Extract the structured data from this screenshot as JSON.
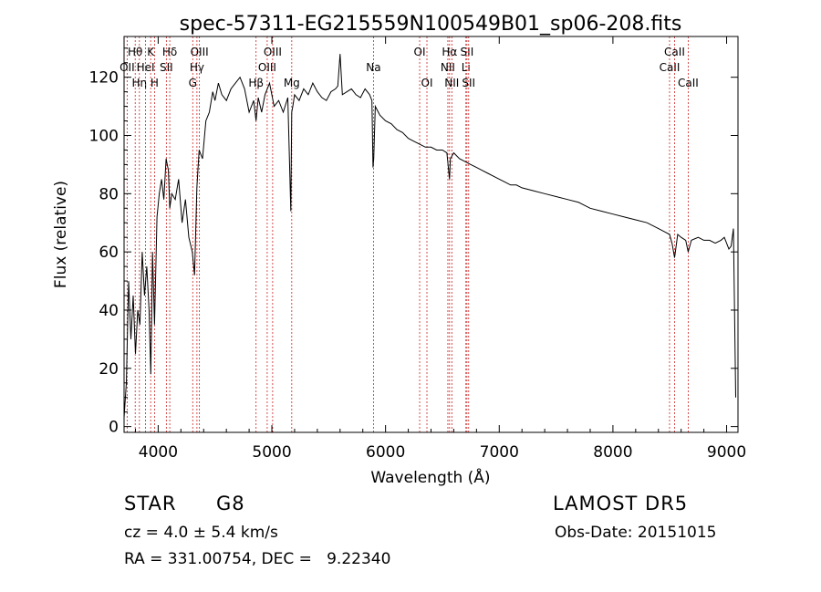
{
  "chart_data": {
    "type": "line",
    "title": "spec-57311-EG215559N100549B01_sp06-208.fits",
    "xlabel": "Wavelength (Å)",
    "ylabel": "Flux (relative)",
    "xlim": [
      3700,
      9100
    ],
    "ylim": [
      -2,
      134
    ],
    "xticks": [
      4000,
      5000,
      6000,
      7000,
      8000,
      9000
    ],
    "yticks": [
      0,
      20,
      40,
      60,
      80,
      100,
      120
    ],
    "grid": false,
    "series": [
      {
        "x": [
          3700,
          3720,
          3740,
          3760,
          3780,
          3800,
          3820,
          3840,
          3860,
          3880,
          3900,
          3920,
          3935,
          3950,
          3968,
          3990,
          4010,
          4030,
          4050,
          4070,
          4090,
          4102,
          4120,
          4150,
          4180,
          4210,
          4240,
          4270,
          4300,
          4320,
          4340,
          4360,
          4390,
          4420,
          4450,
          4480,
          4500,
          4530,
          4560,
          4600,
          4640,
          4680,
          4720,
          4760,
          4800,
          4840,
          4861,
          4880,
          4910,
          4940,
          4980,
          5020,
          5060,
          5100,
          5140,
          5167,
          5175,
          5184,
          5200,
          5240,
          5280,
          5320,
          5360,
          5400,
          5440,
          5480,
          5520,
          5560,
          5580,
          5600,
          5620,
          5660,
          5700,
          5740,
          5780,
          5820,
          5860,
          5880,
          5890,
          5896,
          5910,
          5950,
          6000,
          6050,
          6100,
          6150,
          6200,
          6250,
          6300,
          6350,
          6400,
          6450,
          6500,
          6540,
          6555,
          6563,
          6570,
          6600,
          6650,
          6700,
          6750,
          6800,
          6850,
          6900,
          6950,
          7000,
          7050,
          7100,
          7150,
          7200,
          7300,
          7400,
          7500,
          7600,
          7700,
          7800,
          7900,
          8000,
          8100,
          8200,
          8300,
          8400,
          8450,
          8498,
          8520,
          8542,
          8570,
          8600,
          8640,
          8662,
          8690,
          8750,
          8800,
          8850,
          8900,
          8950,
          8980,
          9000,
          9020,
          9040,
          9060,
          9080
        ],
        "y": [
          3,
          15,
          50,
          30,
          45,
          25,
          40,
          35,
          60,
          45,
          55,
          40,
          18,
          60,
          35,
          72,
          80,
          85,
          78,
          92,
          88,
          75,
          80,
          78,
          85,
          70,
          78,
          65,
          60,
          52,
          82,
          95,
          92,
          105,
          108,
          115,
          112,
          118,
          114,
          112,
          116,
          118,
          120,
          116,
          108,
          112,
          105,
          113,
          108,
          114,
          118,
          110,
          112,
          108,
          113,
          74,
          108,
          110,
          114,
          112,
          116,
          114,
          118,
          115,
          113,
          112,
          115,
          116,
          117,
          128,
          114,
          115,
          116,
          114,
          113,
          116,
          114,
          112,
          89,
          92,
          110,
          107,
          105,
          104,
          102,
          101,
          99,
          98,
          97,
          96,
          96,
          95,
          95,
          94,
          88,
          85,
          92,
          94,
          92,
          91,
          90,
          89,
          88,
          87,
          86,
          85,
          84,
          83,
          83,
          82,
          81,
          80,
          79,
          78,
          77,
          75,
          74,
          73,
          72,
          71,
          70,
          68,
          67,
          66,
          63,
          58,
          66,
          65,
          64,
          60,
          64,
          65,
          64,
          64,
          63,
          64,
          65,
          63,
          61,
          62,
          68,
          10
        ]
      }
    ],
    "lines": [
      {
        "x": 3727,
        "label": "OII",
        "row": 2
      },
      {
        "x": 3798,
        "label": "Hθ",
        "row": 1
      },
      {
        "x": 3835,
        "label": "Hη",
        "row": 3
      },
      {
        "x": 3889,
        "label": "HeI",
        "row": 2
      },
      {
        "x": 3934,
        "label": "K",
        "row": 1
      },
      {
        "x": 3968,
        "label": "H",
        "row": 3
      },
      {
        "x": 4072,
        "label": "SII",
        "row": 2
      },
      {
        "x": 4102,
        "label": "Hδ",
        "row": 1
      },
      {
        "x": 4304,
        "label": "G",
        "row": 3
      },
      {
        "x": 4341,
        "label": "Hγ",
        "row": 2
      },
      {
        "x": 4363,
        "label": "OIII",
        "row": 1
      },
      {
        "x": 4861,
        "label": "Hβ",
        "row": 3
      },
      {
        "x": 4959,
        "label": "OIII",
        "row": 2
      },
      {
        "x": 5007,
        "label": "OIII",
        "row": 1
      },
      {
        "x": 5175,
        "label": "Mg",
        "row": 3
      },
      {
        "x": 5894,
        "label": "Na",
        "row": 2
      },
      {
        "x": 6300,
        "label": "OI",
        "row": 1
      },
      {
        "x": 6364,
        "label": "OI",
        "row": 3
      },
      {
        "x": 6548,
        "label": "NII",
        "row": 2
      },
      {
        "x": 6563,
        "label": "Hα",
        "row": 1
      },
      {
        "x": 6583,
        "label": "NII",
        "row": 3
      },
      {
        "x": 6707,
        "label": "Li",
        "row": 2
      },
      {
        "x": 6716,
        "label": "SII",
        "row": 1
      },
      {
        "x": 6731,
        "label": "SII",
        "row": 3
      },
      {
        "x": 8498,
        "label": "CaII",
        "row": 2
      },
      {
        "x": 8542,
        "label": "CaII",
        "row": 1
      },
      {
        "x": 8662,
        "label": "CaII",
        "row": 3
      }
    ]
  },
  "info": {
    "class_label": "STAR",
    "subclass": "G8",
    "survey": "LAMOST DR5",
    "cz": "cz = 4.0 ± 5.4 km/s",
    "obs_date": "Obs-Date: 20151015",
    "radec": "RA = 331.00754, DEC =   9.22340"
  },
  "colors": {
    "spectrum": "#000000",
    "line_markers": "#cc2222",
    "text": "#000000"
  }
}
